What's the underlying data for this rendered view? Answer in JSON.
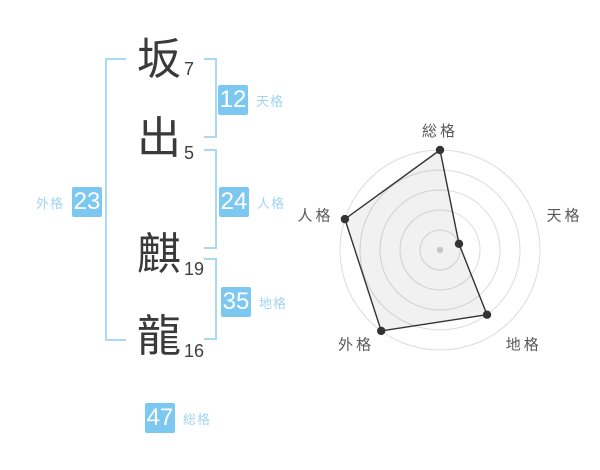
{
  "name_panel": {
    "characters": [
      {
        "char": "坂",
        "strokes": "7"
      },
      {
        "char": "出",
        "strokes": "5"
      },
      {
        "char": "麒",
        "strokes": "19"
      },
      {
        "char": "龍",
        "strokes": "16"
      }
    ],
    "badges": {
      "tenkaku": {
        "value": "12",
        "label": "天格"
      },
      "jinkaku": {
        "value": "24",
        "label": "人格"
      },
      "chikaku": {
        "value": "35",
        "label": "地格"
      },
      "gaikaku": {
        "value": "23",
        "label": "外格"
      },
      "soukaku": {
        "value": "47",
        "label": "総格"
      }
    }
  },
  "chart_data": {
    "type": "radar",
    "axes": [
      "総格",
      "天格",
      "地格",
      "外格",
      "人格"
    ],
    "values": [
      5,
      1,
      4,
      5,
      5
    ],
    "max": 5,
    "rings": 5,
    "legend_position": "none",
    "grid": "concentric-circles"
  },
  "colors": {
    "badge_bg": "#7dc8f0",
    "badge_text": "#ffffff",
    "bracket": "#a8daf5",
    "badge_label_text": "#a0d5f2",
    "name_text": "#3a3a3a",
    "radar_ring": "#dcdcdc",
    "radar_line": "#333333",
    "radar_label": "#5a5a5a"
  }
}
